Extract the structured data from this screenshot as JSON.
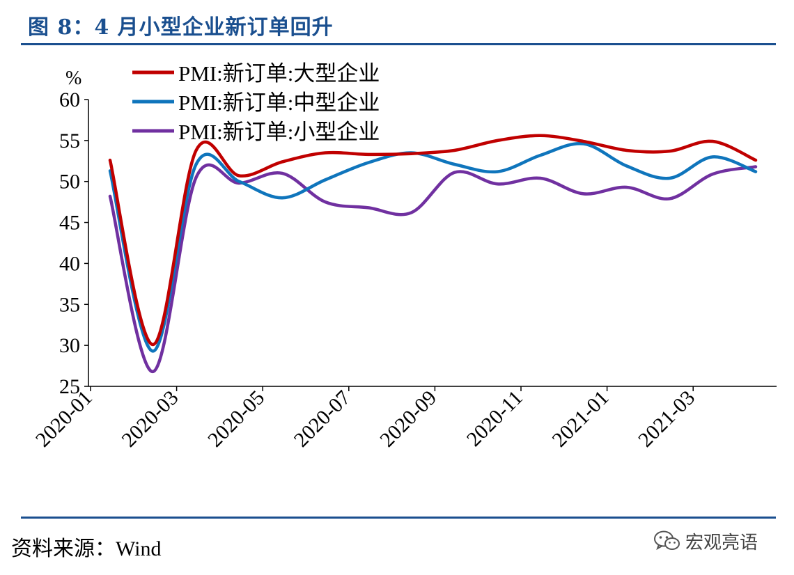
{
  "header": {
    "title": "图 8：4 月小型企业新订单回升"
  },
  "footer": {
    "source": "资料来源：Wind",
    "watermark": "宏观亮语",
    "watermark_icon": "wechat-icon"
  },
  "colors": {
    "large": "#c00000",
    "medium": "#0f75bc",
    "small": "#7030a0",
    "rule": "#1a4f8f"
  },
  "chart_data": {
    "type": "line",
    "title": "",
    "xlabel": "",
    "ylabel": "%",
    "ylim": [
      25,
      60
    ],
    "yticks": [
      25,
      30,
      35,
      40,
      45,
      50,
      55,
      60
    ],
    "x": [
      "2020-01",
      "2020-02",
      "2020-03",
      "2020-04",
      "2020-05",
      "2020-06",
      "2020-07",
      "2020-08",
      "2020-09",
      "2020-10",
      "2020-11",
      "2020-12",
      "2021-01",
      "2021-02",
      "2021-03",
      "2021-04"
    ],
    "xtick_labels": [
      "2020-01",
      "2020-03",
      "2020-05",
      "2020-07",
      "2020-09",
      "2020-11",
      "2021-01",
      "2021-03"
    ],
    "legend_position": "top-left",
    "grid": false,
    "series": [
      {
        "name": "PMI:新订单:大型企业",
        "color": "#c00000",
        "values": [
          52.6,
          30.1,
          53.8,
          50.7,
          52.4,
          53.5,
          53.3,
          53.4,
          53.8,
          55.0,
          55.6,
          54.9,
          53.8,
          53.7,
          54.9,
          52.6
        ]
      },
      {
        "name": "PMI:新订单:中型企业",
        "color": "#0f75bc",
        "values": [
          51.3,
          29.3,
          52.1,
          50.0,
          48.0,
          50.2,
          52.3,
          53.5,
          52.1,
          51.2,
          53.2,
          54.6,
          51.9,
          50.4,
          53.0,
          51.2
        ]
      },
      {
        "name": "PMI:新订单:小型企业",
        "color": "#7030a0",
        "values": [
          48.2,
          26.8,
          50.5,
          49.8,
          51.0,
          47.5,
          46.8,
          46.2,
          51.1,
          49.7,
          50.4,
          48.5,
          49.3,
          47.9,
          50.9,
          51.8
        ]
      }
    ]
  }
}
